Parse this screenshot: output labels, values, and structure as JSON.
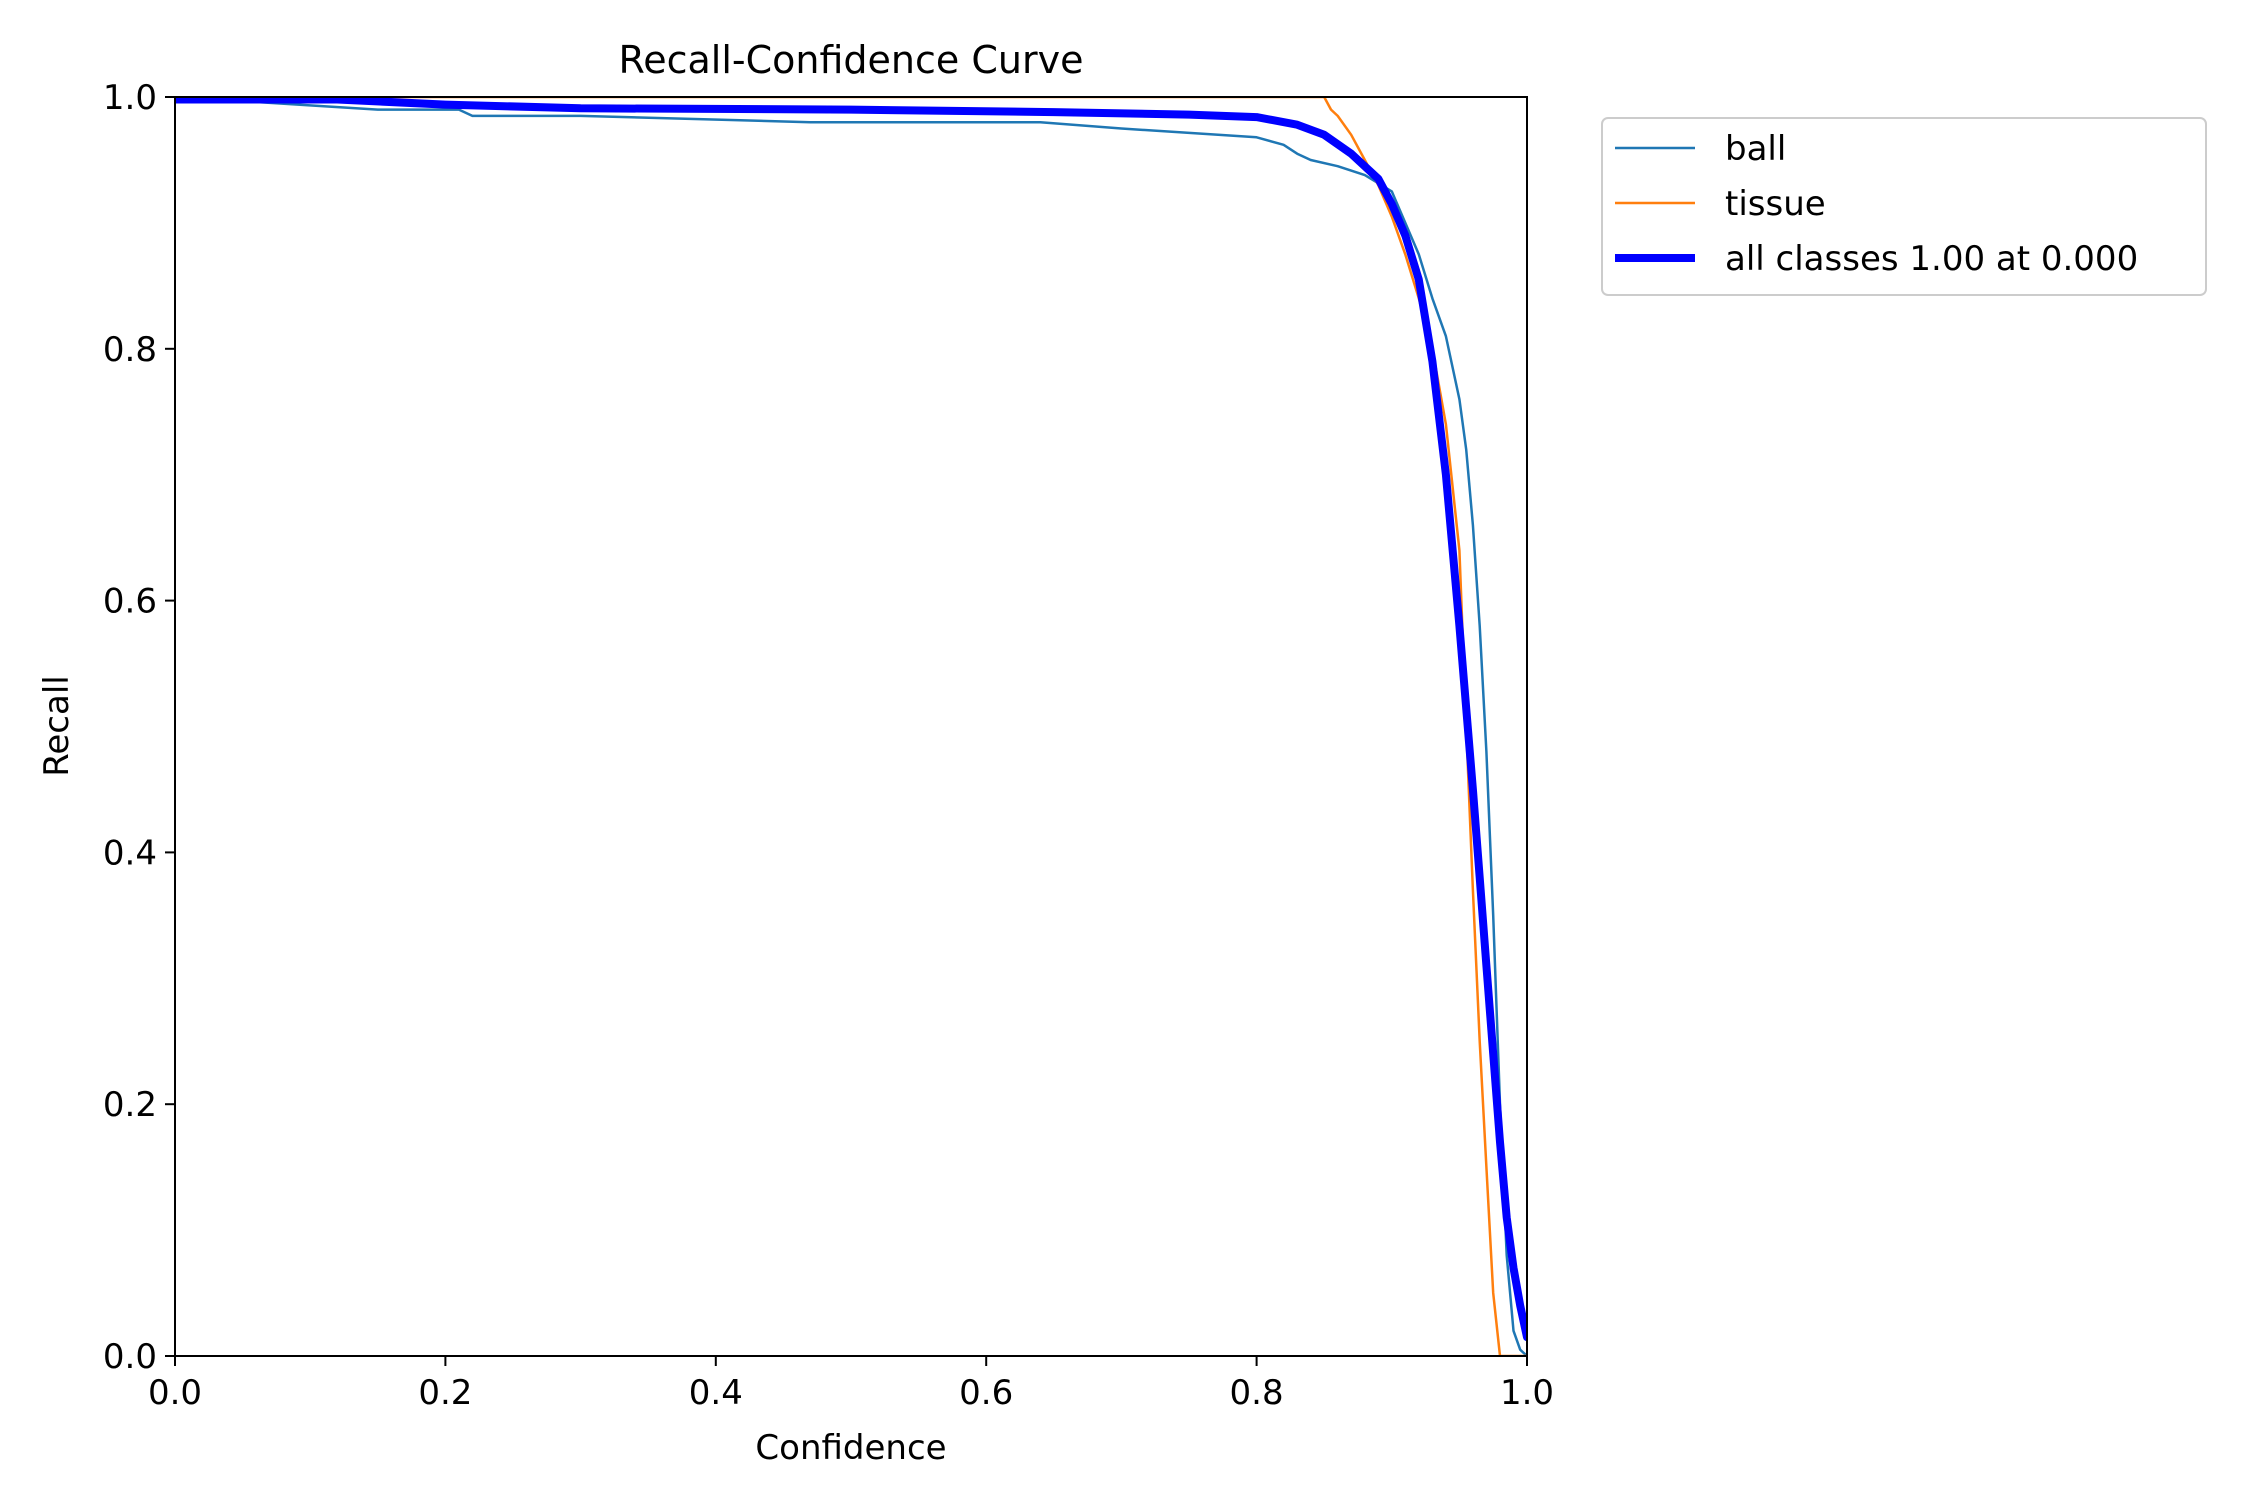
{
  "chart_data": {
    "type": "line",
    "title": "Recall-Confidence Curve",
    "xlabel": "Confidence",
    "ylabel": "Recall",
    "xlim": [
      0.0,
      1.0
    ],
    "ylim": [
      0.0,
      1.0
    ],
    "xticks": [
      "0.0",
      "0.2",
      "0.4",
      "0.6",
      "0.8",
      "1.0"
    ],
    "yticks": [
      "0.0",
      "0.2",
      "0.4",
      "0.6",
      "0.8",
      "1.0"
    ],
    "grid": false,
    "legend_position": "outside upper right",
    "series": [
      {
        "name": "ball",
        "color": "#1f77b4",
        "x": [
          0.0,
          0.15,
          0.2,
          0.21,
          0.22,
          0.3,
          0.47,
          0.64,
          0.7,
          0.8,
          0.82,
          0.83,
          0.84,
          0.86,
          0.88,
          0.9,
          0.91,
          0.92,
          0.93,
          0.94,
          0.95,
          0.955,
          0.96,
          0.965,
          0.97,
          0.975,
          0.98,
          0.985,
          0.99,
          0.995,
          1.0
        ],
        "y": [
          1.0,
          0.99,
          0.99,
          0.99,
          0.985,
          0.985,
          0.98,
          0.98,
          0.975,
          0.968,
          0.962,
          0.955,
          0.95,
          0.945,
          0.938,
          0.925,
          0.9,
          0.875,
          0.84,
          0.81,
          0.76,
          0.72,
          0.66,
          0.58,
          0.48,
          0.35,
          0.2,
          0.08,
          0.02,
          0.005,
          0.0
        ]
      },
      {
        "name": "tissue",
        "color": "#ff7f0e",
        "x": [
          0.0,
          0.5,
          0.85,
          0.855,
          0.86,
          0.87,
          0.88,
          0.89,
          0.9,
          0.91,
          0.92,
          0.93,
          0.94,
          0.95,
          0.955,
          0.96,
          0.965,
          0.97,
          0.975,
          0.98,
          0.985,
          1.0
        ],
        "y": [
          1.0,
          1.0,
          1.0,
          0.99,
          0.985,
          0.97,
          0.95,
          0.93,
          0.905,
          0.875,
          0.84,
          0.8,
          0.74,
          0.64,
          0.5,
          0.37,
          0.25,
          0.15,
          0.05,
          0.0,
          0.0,
          0.0
        ]
      },
      {
        "name": "all classes 1.00 at 0.000",
        "color": "#0000ff",
        "x": [
          0.0,
          0.12,
          0.2,
          0.3,
          0.5,
          0.65,
          0.75,
          0.8,
          0.83,
          0.85,
          0.87,
          0.89,
          0.9,
          0.91,
          0.92,
          0.93,
          0.94,
          0.95,
          0.96,
          0.965,
          0.97,
          0.975,
          0.98,
          0.985,
          0.99,
          0.995,
          1.0
        ],
        "y": [
          0.998,
          0.998,
          0.994,
          0.991,
          0.99,
          0.988,
          0.986,
          0.984,
          0.978,
          0.97,
          0.955,
          0.935,
          0.915,
          0.89,
          0.855,
          0.79,
          0.7,
          0.58,
          0.45,
          0.38,
          0.31,
          0.24,
          0.17,
          0.11,
          0.07,
          0.04,
          0.015
        ]
      }
    ]
  }
}
